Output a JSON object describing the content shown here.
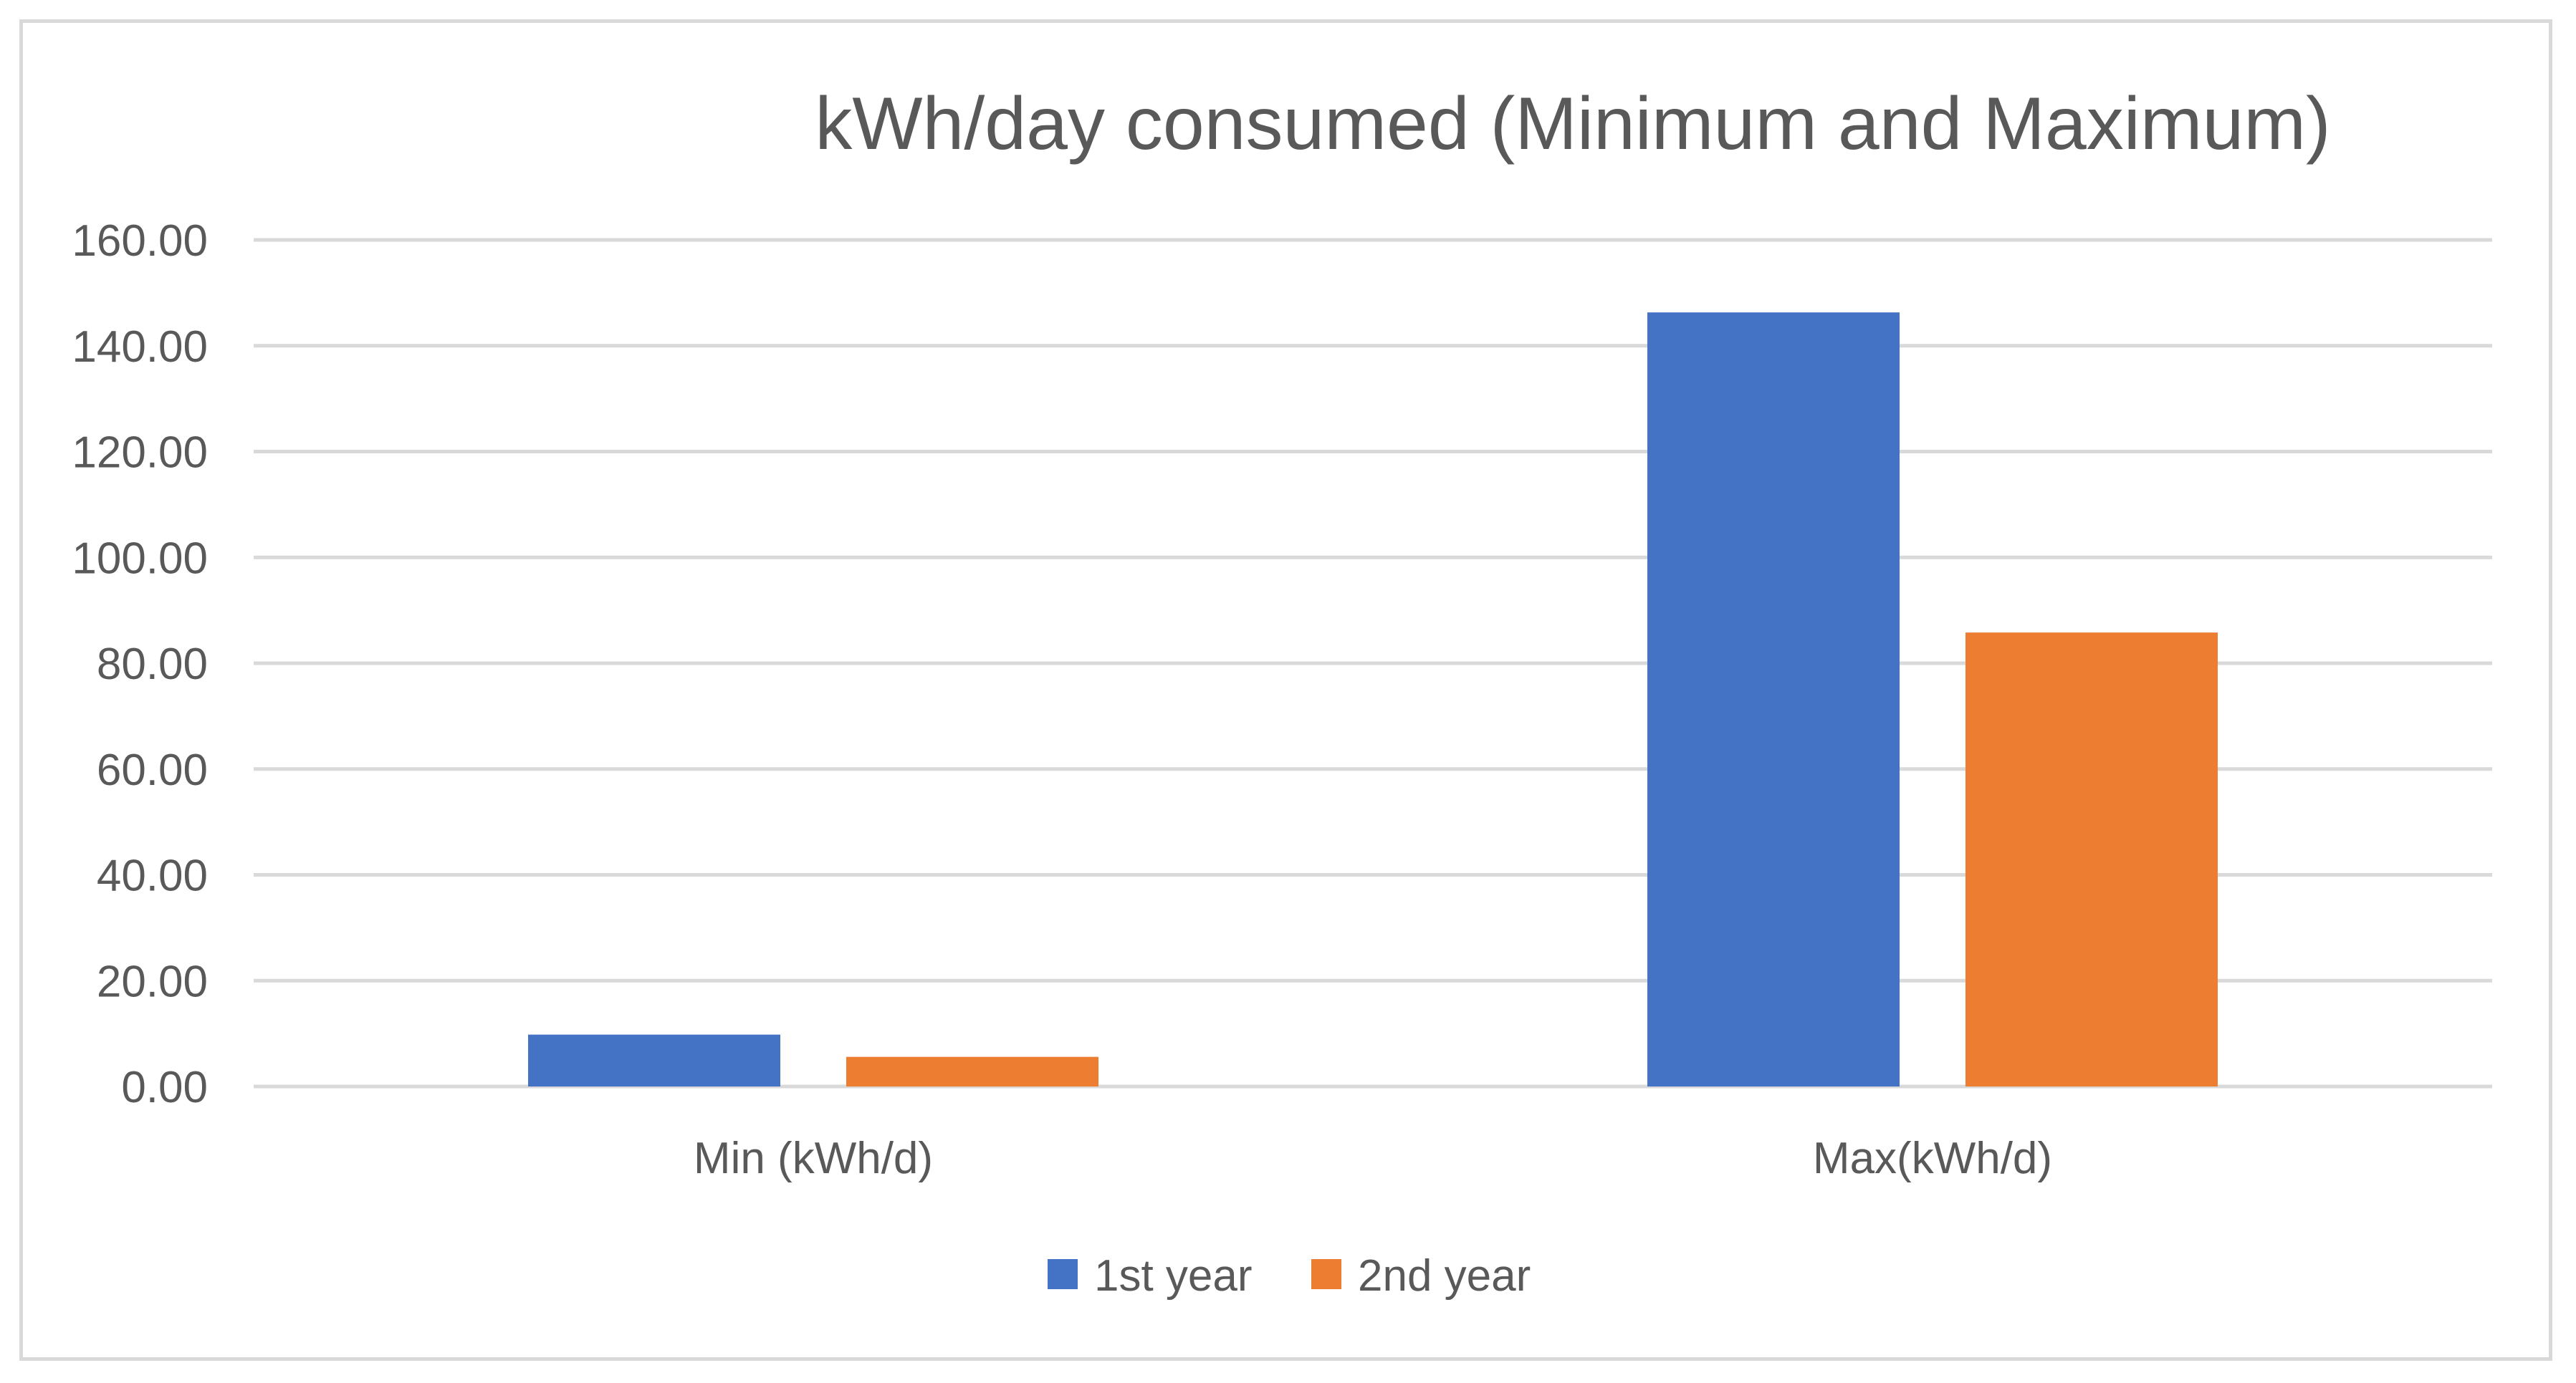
{
  "chart_data": {
    "type": "bar",
    "title": "kWh/day consumed (Minimum and Maximum)",
    "categories": [
      "Min (kWh/d)",
      "Max(kWh/d)"
    ],
    "series": [
      {
        "name": "1st year",
        "color": "#4472c4",
        "values": [
          9.8,
          146.3
        ]
      },
      {
        "name": "2nd year",
        "color": "#ed7d31",
        "values": [
          5.6,
          85.8
        ]
      }
    ],
    "ylim": [
      0,
      160
    ],
    "ytick_values": [
      0,
      20,
      40,
      60,
      80,
      100,
      120,
      140,
      160
    ],
    "ytick_labels": [
      "0.00",
      "20.00",
      "40.00",
      "60.00",
      "80.00",
      "100.00",
      "120.00",
      "140.00",
      "160.00"
    ],
    "xlabel": "",
    "ylabel": "",
    "grid": true,
    "legend_position": "bottom"
  }
}
